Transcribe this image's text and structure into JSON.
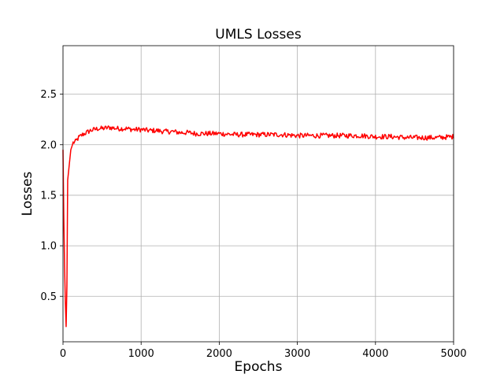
{
  "chart_data": {
    "type": "line",
    "title": "UMLS Losses",
    "xlabel": "Epochs",
    "ylabel": "Losses",
    "xlim": [
      0,
      5000
    ],
    "ylim": [
      0.05,
      2.98
    ],
    "xticks": [
      0,
      1000,
      2000,
      3000,
      4000,
      5000
    ],
    "yticks": [
      0.5,
      1.0,
      1.5,
      2.0,
      2.5
    ],
    "xtick_labels": [
      "0",
      "1000",
      "2000",
      "3000",
      "4000",
      "5000"
    ],
    "ytick_labels": [
      "0.5",
      "1.0",
      "1.5",
      "2.0",
      "2.5"
    ],
    "grid": true,
    "legend": "none",
    "series": [
      {
        "color": "#ff0000",
        "x": [
          0,
          10,
          20,
          30,
          40,
          50,
          60,
          80,
          100,
          130,
          160,
          200,
          250,
          300,
          350,
          400,
          450,
          500,
          600,
          700,
          800,
          900,
          1000,
          1100,
          1200,
          1300,
          1400,
          1500,
          1600,
          1700,
          1800,
          1900,
          2000,
          2200,
          2400,
          2600,
          2800,
          3000,
          3200,
          3400,
          3600,
          3800,
          4000,
          4200,
          4400,
          4600,
          4800,
          5000
        ],
        "y": [
          1.95,
          1.3,
          0.8,
          0.45,
          0.2,
          0.6,
          1.65,
          1.8,
          1.95,
          2.02,
          2.03,
          2.07,
          2.1,
          2.12,
          2.14,
          2.15,
          2.16,
          2.16,
          2.17,
          2.16,
          2.16,
          2.15,
          2.15,
          2.14,
          2.14,
          2.13,
          2.13,
          2.12,
          2.12,
          2.11,
          2.11,
          2.11,
          2.11,
          2.1,
          2.1,
          2.1,
          2.1,
          2.09,
          2.09,
          2.09,
          2.09,
          2.09,
          2.08,
          2.08,
          2.07,
          2.07,
          2.07,
          2.08
        ]
      }
    ]
  }
}
